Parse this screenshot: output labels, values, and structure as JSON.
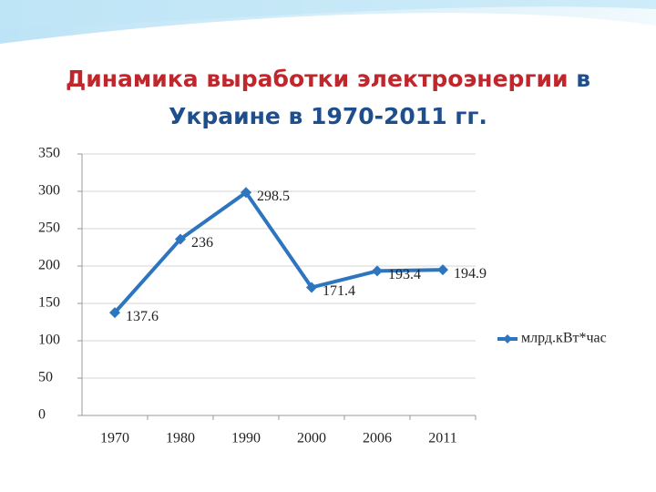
{
  "chart_data": {
    "type": "line",
    "title": [
      "Динамика выработки электроэнергии",
      "в",
      "Украине в 1970-2011 гг."
    ],
    "categories": [
      "1970",
      "1980",
      "1990",
      "2000",
      "2006",
      "2011"
    ],
    "series": [
      {
        "name": "млрд.кВт*час",
        "color": "#2e75c0",
        "values": [
          137.6,
          236,
          298.5,
          171.4,
          193.4,
          194.9
        ]
      }
    ],
    "ylim": [
      0,
      350
    ],
    "yticks": [
      0,
      50,
      100,
      150,
      200,
      250,
      300,
      350
    ],
    "grid": true,
    "legend": "right",
    "data_labels": true
  }
}
